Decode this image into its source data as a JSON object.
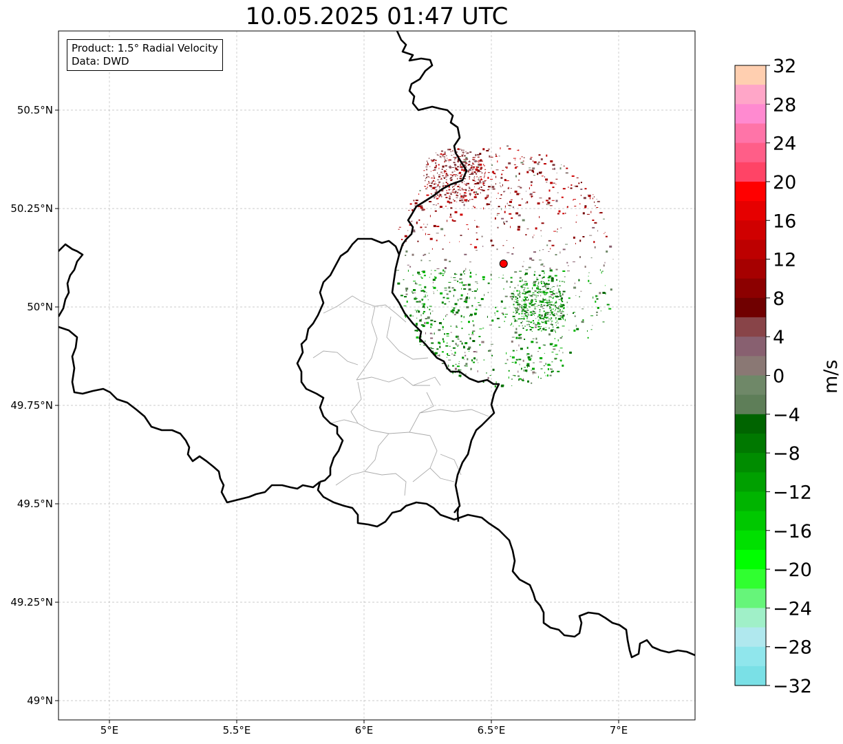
{
  "title": "10.05.2025 01:47 UTC",
  "info": {
    "product": "Product: 1.5° Radial Velocity",
    "source": "Data: DWD"
  },
  "map": {
    "extent": {
      "lon_min": 4.8,
      "lon_max": 7.3,
      "lat_min": 48.95,
      "lat_max": 50.7
    },
    "lon_ticks": [
      {
        "value": 5.0,
        "label": "5°E"
      },
      {
        "value": 5.5,
        "label": "5.5°E"
      },
      {
        "value": 6.0,
        "label": "6°E"
      },
      {
        "value": 6.5,
        "label": "6.5°E"
      },
      {
        "value": 7.0,
        "label": "7°E"
      }
    ],
    "lat_ticks": [
      {
        "value": 50.5,
        "label": "50.5°N"
      },
      {
        "value": 50.25,
        "label": "50.25°N"
      },
      {
        "value": 50.0,
        "label": "50°N"
      },
      {
        "value": 49.75,
        "label": "49.75°N"
      },
      {
        "value": 49.5,
        "label": "49.5°N"
      },
      {
        "value": 49.25,
        "label": "49.25°N"
      },
      {
        "value": 49.0,
        "label": "49°N"
      }
    ],
    "radar_site": {
      "lon": 6.548,
      "lat": 50.11,
      "color": "#ff0000"
    },
    "gridlines": true
  },
  "colorbar": {
    "label": "m/s",
    "min": -32,
    "max": 32,
    "ticks": [
      "32",
      "28",
      "24",
      "20",
      "16",
      "12",
      "8",
      "4",
      "0",
      "−4",
      "−8",
      "−12",
      "−16",
      "−20",
      "−24",
      "−28",
      "−32"
    ],
    "colors_top_to_bottom": [
      "#ffcfb0",
      "#ffa6c8",
      "#ff8ad0",
      "#ff74a8",
      "#ff5e88",
      "#ff4466",
      "#ff0000",
      "#e60000",
      "#d00000",
      "#bd0000",
      "#a60000",
      "#8c0000",
      "#700000",
      "#884448",
      "#886070",
      "#8a7874",
      "#6f8868",
      "#5e7e58",
      "#006400",
      "#007800",
      "#008c00",
      "#00a000",
      "#00b400",
      "#00c800",
      "#00e000",
      "#00ff00",
      "#30ff30",
      "#66f57a",
      "#a0f0c8",
      "#b0e8ee",
      "#90e6ec",
      "#7ae0e6"
    ]
  }
}
